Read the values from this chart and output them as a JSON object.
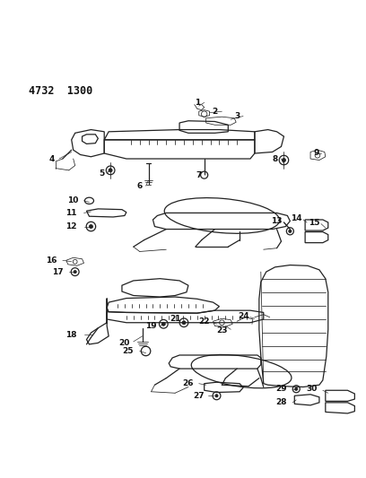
{
  "title": "4732  1300",
  "bg_color": "#ffffff",
  "text_color": "#111111",
  "line_color": "#222222",
  "fig_width": 4.08,
  "fig_height": 5.33,
  "dpi": 100
}
